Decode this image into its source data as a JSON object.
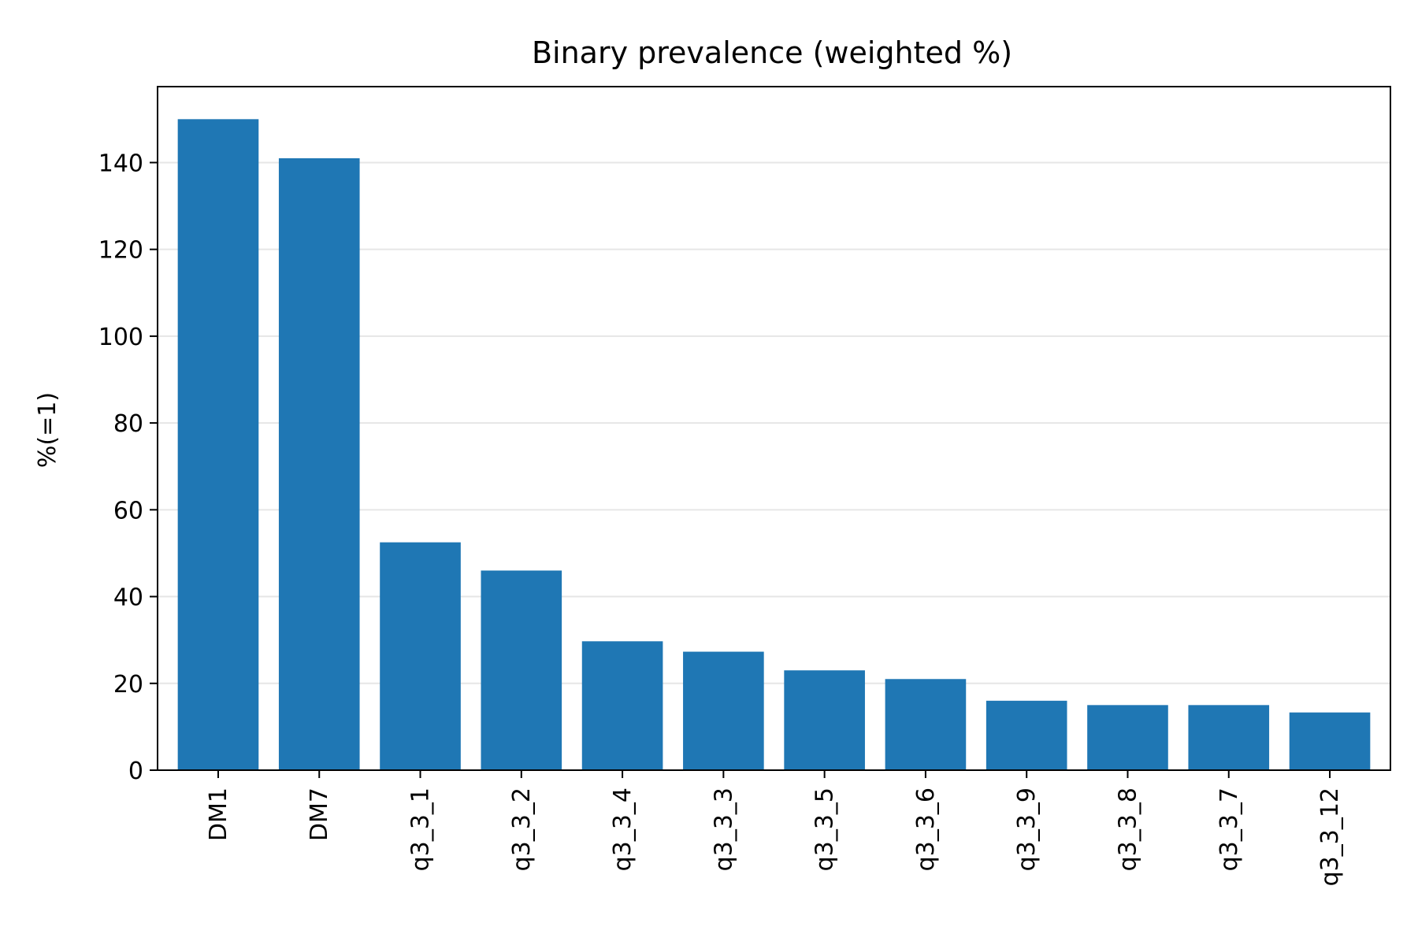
{
  "chart_data": {
    "type": "bar",
    "title": "Binary prevalence (weighted %)",
    "xlabel": "",
    "ylabel": "%(=1)",
    "categories": [
      "DM1",
      "DM7",
      "q3_3_1",
      "q3_3_2",
      "q3_3_4",
      "q3_3_3",
      "q3_3_5",
      "q3_3_6",
      "q3_3_9",
      "q3_3_8",
      "q3_3_7",
      "q3_3_12"
    ],
    "values": [
      150.0,
      141.0,
      52.5,
      46.0,
      29.7,
      27.3,
      23.0,
      21.0,
      16.0,
      15.0,
      15.0,
      13.3
    ],
    "ylim": [
      0,
      157.5
    ],
    "yticks": [
      0,
      20,
      40,
      60,
      80,
      100,
      120,
      140
    ],
    "grid": "horizontal",
    "bar_color": "#1f77b4",
    "grid_color": "#e6e6e6"
  }
}
